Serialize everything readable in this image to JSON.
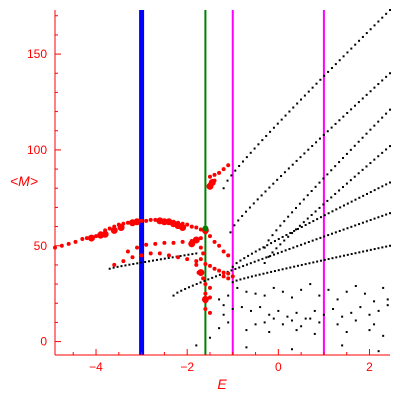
{
  "chart_data": {
    "type": "scatter",
    "title": "",
    "xlabel": "E",
    "ylabel": "<M>",
    "xlim": [
      -4.9,
      2.45
    ],
    "ylim": [
      -7,
      173
    ],
    "xticks": [
      -4,
      -2,
      0,
      2
    ],
    "yticks": [
      0,
      50,
      100,
      150
    ],
    "grid": false,
    "axis_color": "#ff0000",
    "vertical_lines": [
      {
        "x": -3.0,
        "color": "#0000ff",
        "style": "thick"
      },
      {
        "x": -1.6,
        "color": "#008000",
        "style": "medium"
      },
      {
        "x": -1.0,
        "color": "#ff00ff",
        "style": "medium"
      },
      {
        "x": 1.0,
        "color": "#ff00ff",
        "style": "medium"
      }
    ],
    "red_points": [
      [
        -4.9,
        49
      ],
      [
        -4.75,
        50
      ],
      [
        -4.6,
        51
      ],
      [
        -4.45,
        52
      ],
      [
        -4.3,
        53.5
      ],
      [
        -4.2,
        54
      ],
      [
        -4.1,
        54.5
      ],
      [
        -4.0,
        55
      ],
      [
        -3.9,
        56.5
      ],
      [
        -3.8,
        58
      ],
      [
        -3.7,
        59
      ],
      [
        -3.6,
        60
      ],
      [
        -3.5,
        61
      ],
      [
        -3.4,
        61.5
      ],
      [
        -3.3,
        62
      ],
      [
        -3.2,
        62.5
      ],
      [
        -3.1,
        63
      ],
      [
        -3.0,
        63
      ],
      [
        -2.9,
        63
      ],
      [
        -2.8,
        63.5
      ],
      [
        -2.7,
        63.5
      ],
      [
        -2.6,
        63.5
      ],
      [
        -2.5,
        63
      ],
      [
        -2.4,
        63
      ],
      [
        -2.3,
        62.5
      ],
      [
        -2.2,
        62
      ],
      [
        -2.1,
        61.5
      ],
      [
        -2.0,
        61
      ],
      [
        -1.9,
        60
      ],
      [
        -1.8,
        59.5
      ],
      [
        -1.7,
        58.5
      ],
      [
        -1.6,
        57
      ],
      [
        -1.5,
        55
      ],
      [
        -1.4,
        52
      ],
      [
        -1.3,
        50
      ],
      [
        -1.2,
        47
      ],
      [
        -1.1,
        45
      ],
      [
        -3.3,
        47
      ],
      [
        -3.1,
        49
      ],
      [
        -2.9,
        50.5
      ],
      [
        -2.7,
        51
      ],
      [
        -2.5,
        51.5
      ],
      [
        -2.3,
        51.5
      ],
      [
        -2.1,
        52
      ],
      [
        -1.9,
        52.5
      ],
      [
        -1.8,
        53
      ],
      [
        -1.7,
        54
      ],
      [
        -3.6,
        40
      ],
      [
        -3.4,
        42
      ],
      [
        -3.2,
        44
      ],
      [
        -3.0,
        45
      ],
      [
        -2.8,
        46
      ],
      [
        -2.6,
        46
      ],
      [
        -2.4,
        45
      ],
      [
        -2.2,
        44
      ],
      [
        -2.0,
        43
      ],
      [
        -1.8,
        42
      ],
      [
        -1.6,
        40.5
      ],
      [
        -1.5,
        39.5
      ],
      [
        -1.4,
        38
      ],
      [
        -1.3,
        37
      ],
      [
        -1.2,
        36
      ],
      [
        -1.1,
        35.5
      ],
      [
        -1.0,
        34
      ],
      [
        -1.6,
        30
      ],
      [
        -1.5,
        28
      ],
      [
        -1.6,
        25
      ],
      [
        -1.5,
        23
      ],
      [
        -1.6,
        21
      ],
      [
        -1.6,
        17
      ],
      [
        -1.5,
        15
      ],
      [
        -1.5,
        82
      ],
      [
        -1.45,
        83
      ],
      [
        -1.4,
        84
      ],
      [
        -1.5,
        86
      ],
      [
        -1.4,
        87
      ],
      [
        -1.3,
        88
      ],
      [
        -1.2,
        90
      ],
      [
        -1.1,
        92
      ],
      [
        -1.7,
        49
      ],
      [
        -1.65,
        46
      ],
      [
        -1.7,
        43
      ],
      [
        -1.8,
        40
      ],
      [
        -1.75,
        36
      ],
      [
        -1.65,
        33
      ],
      [
        -1.2,
        34
      ],
      [
        -1.1,
        33
      ]
    ],
    "red_large_points": [
      [
        -4.1,
        54
      ],
      [
        -3.9,
        55.5
      ],
      [
        -3.8,
        56
      ],
      [
        -3.6,
        58
      ],
      [
        -3.45,
        59.5
      ],
      [
        -3.2,
        62
      ],
      [
        -3.1,
        62.5
      ],
      [
        -2.6,
        63
      ],
      [
        -2.5,
        62.5
      ],
      [
        -2.4,
        62.5
      ],
      [
        -2.3,
        61.5
      ],
      [
        -2.2,
        60.5
      ],
      [
        -2.1,
        59.5
      ],
      [
        -1.5,
        81
      ],
      [
        -1.45,
        83
      ],
      [
        -1.6,
        58
      ],
      [
        -1.8,
        53
      ],
      [
        -1.9,
        51
      ],
      [
        -1.7,
        36
      ],
      [
        -1.6,
        22
      ]
    ],
    "green_point": [
      -1.6,
      59
    ],
    "black_curves": [
      {
        "x_start": -1.2,
        "y_start": 80,
        "x_end": 2.45,
        "y_end": 173
      },
      {
        "x_start": -1.05,
        "y_start": 57,
        "x_end": 2.45,
        "y_end": 140
      },
      {
        "x_start": -0.3,
        "y_start": 49,
        "x_end": 2.45,
        "y_end": 121
      },
      {
        "x_start": -0.3,
        "y_start": 41,
        "x_end": 2.45,
        "y_end": 102
      },
      {
        "x_start": -1.0,
        "y_start": 39,
        "x_end": 2.45,
        "y_end": 83
      },
      {
        "x_start": -2.3,
        "y_start": 24,
        "x_end": 2.45,
        "y_end": 67
      },
      {
        "x_start": -3.7,
        "y_start": 38,
        "x_end": -1.8,
        "y_end": 46
      },
      {
        "x_start": -1.0,
        "y_start": 31,
        "x_end": 2.45,
        "y_end": 50
      }
    ],
    "black_scatter_points": [
      [
        -0.9,
        28
      ],
      [
        -0.7,
        26
      ],
      [
        -0.5,
        25
      ],
      [
        -0.3,
        24
      ],
      [
        -0.1,
        28
      ],
      [
        0.1,
        26
      ],
      [
        0.3,
        23
      ],
      [
        0.5,
        27
      ],
      [
        0.7,
        30
      ],
      [
        0.9,
        24
      ],
      [
        1.1,
        27
      ],
      [
        1.3,
        22
      ],
      [
        1.5,
        26
      ],
      [
        1.7,
        29
      ],
      [
        1.9,
        25
      ],
      [
        2.1,
        21
      ],
      [
        2.3,
        28
      ],
      [
        2.4,
        22
      ],
      [
        -0.8,
        18
      ],
      [
        -0.6,
        16
      ],
      [
        -0.4,
        18
      ],
      [
        -0.2,
        14
      ],
      [
        0.0,
        16
      ],
      [
        0.2,
        13
      ],
      [
        0.4,
        15
      ],
      [
        0.6,
        12
      ],
      [
        0.8,
        16
      ],
      [
        1.0,
        14
      ],
      [
        1.2,
        17
      ],
      [
        1.4,
        13
      ],
      [
        1.6,
        15
      ],
      [
        1.8,
        18
      ],
      [
        2.0,
        14
      ],
      [
        2.2,
        16
      ],
      [
        2.4,
        19
      ],
      [
        -0.5,
        9
      ],
      [
        -0.3,
        10
      ],
      [
        -0.1,
        12
      ],
      [
        0.1,
        9
      ],
      [
        0.3,
        11
      ],
      [
        0.5,
        8
      ],
      [
        0.7,
        12
      ],
      [
        0.9,
        10
      ],
      [
        1.3,
        9
      ],
      [
        1.7,
        11
      ],
      [
        2.1,
        9
      ],
      [
        -0.7,
        6
      ],
      [
        -0.2,
        5
      ],
      [
        0.4,
        6
      ],
      [
        0.8,
        4
      ],
      [
        1.5,
        5
      ],
      [
        2.0,
        6
      ],
      [
        2.3,
        3
      ],
      [
        -1.3,
        22
      ],
      [
        -1.2,
        19
      ],
      [
        -1.1,
        24
      ],
      [
        -1.0,
        17
      ],
      [
        -1.2,
        14
      ],
      [
        -1.1,
        10
      ],
      [
        -1.3,
        7
      ],
      [
        -1.8,
        -2
      ],
      [
        -1.5,
        2
      ],
      [
        -0.7,
        -3
      ],
      [
        0.3,
        -4
      ],
      [
        1.4,
        -2
      ],
      [
        2.2,
        -5
      ]
    ]
  }
}
